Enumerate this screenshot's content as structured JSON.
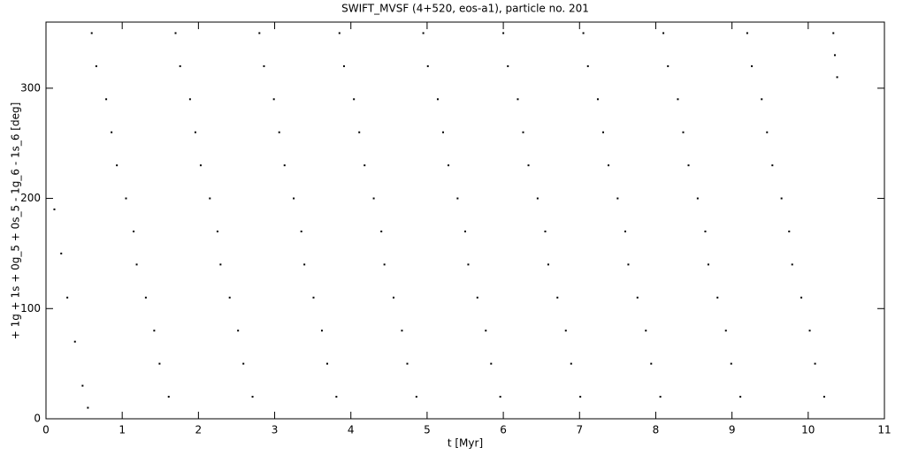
{
  "chart_data": {
    "type": "scatter",
    "title": "SWIFT_MVSF (4+520, eos-a1), particle no. 201",
    "x_label": "t [Myr]",
    "y_label": "+ 1g + 1s + 0g_5 + 0s_5 - 1g_6 - 1s_6 [deg]",
    "xlim": [
      0,
      11
    ],
    "ylim": [
      0,
      360
    ],
    "xticks": [
      0,
      1,
      2,
      3,
      4,
      5,
      6,
      7,
      8,
      9,
      10,
      11
    ],
    "yticks": [
      0,
      100,
      200,
      300
    ],
    "series": [
      {
        "color": "#000000",
        "x": [
          0.11,
          0.2,
          0.28,
          0.38,
          0.48,
          0.55,
          0.6,
          0.66,
          0.79,
          0.86,
          0.93,
          1.05,
          1.15,
          1.19,
          1.31,
          1.42,
          1.49,
          1.61,
          1.7,
          1.76,
          1.89,
          1.96,
          2.03,
          2.15,
          2.25,
          2.29,
          2.41,
          2.52,
          2.59,
          2.71,
          2.8,
          2.86,
          2.99,
          3.06,
          3.13,
          3.25,
          3.35,
          3.39,
          3.51,
          3.62,
          3.69,
          3.81,
          3.85,
          3.91,
          4.04,
          4.11,
          4.18,
          4.3,
          4.4,
          4.44,
          4.56,
          4.67,
          4.74,
          4.86,
          4.95,
          5.01,
          5.14,
          5.21,
          5.28,
          5.4,
          5.5,
          5.54,
          5.66,
          5.77,
          5.84,
          5.96,
          6.0,
          6.06,
          6.19,
          6.26,
          6.33,
          6.45,
          6.55,
          6.59,
          6.71,
          6.82,
          6.89,
          7.01,
          7.05,
          7.11,
          7.24,
          7.31,
          7.38,
          7.5,
          7.6,
          7.64,
          7.76,
          7.87,
          7.94,
          8.06,
          8.1,
          8.16,
          8.29,
          8.36,
          8.43,
          8.55,
          8.65,
          8.69,
          8.81,
          8.92,
          8.99,
          9.11,
          9.2,
          9.26,
          9.39,
          9.46,
          9.53,
          9.65,
          9.75,
          9.79,
          9.91,
          10.02,
          10.09,
          10.21,
          10.33,
          10.35,
          10.38
        ],
        "values": [
          190,
          150,
          110,
          70,
          30,
          10,
          350,
          320,
          290,
          260,
          230,
          200,
          170,
          140,
          110,
          80,
          50,
          20,
          350,
          320,
          290,
          260,
          230,
          200,
          170,
          140,
          110,
          80,
          50,
          20,
          350,
          320,
          290,
          260,
          230,
          200,
          170,
          140,
          110,
          80,
          50,
          20,
          350,
          320,
          290,
          260,
          230,
          200,
          170,
          140,
          110,
          80,
          50,
          20,
          350,
          320,
          290,
          260,
          230,
          200,
          170,
          140,
          110,
          80,
          50,
          20,
          350,
          320,
          290,
          260,
          230,
          200,
          170,
          140,
          110,
          80,
          50,
          20,
          350,
          320,
          290,
          260,
          230,
          200,
          170,
          140,
          110,
          80,
          50,
          20,
          350,
          320,
          290,
          260,
          230,
          200,
          170,
          140,
          110,
          80,
          50,
          20,
          350,
          320,
          290,
          260,
          230,
          200,
          170,
          140,
          110,
          80,
          50,
          20,
          350,
          330,
          310
        ]
      }
    ]
  }
}
